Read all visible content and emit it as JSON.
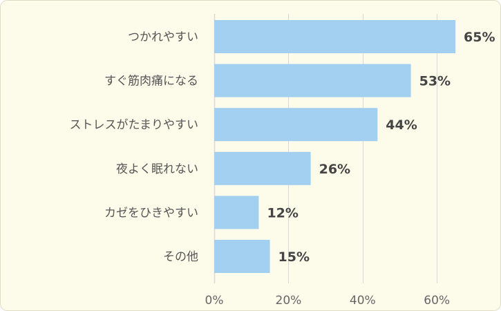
{
  "chart_data": {
    "type": "bar",
    "orientation": "horizontal",
    "categories": [
      "つかれやすい",
      "すぐ筋肉痛になる",
      "ストレスがたまりやすい",
      "夜よく眠れない",
      "カゼをひきやすい",
      "その他"
    ],
    "values": [
      65,
      53,
      44,
      26,
      12,
      15
    ],
    "value_labels": [
      "65%",
      "53%",
      "44%",
      "26%",
      "12%",
      "15%"
    ],
    "x_ticks": [
      0,
      20,
      40,
      60
    ],
    "x_tick_labels": [
      "0%",
      "20%",
      "40%",
      "60%"
    ],
    "xlim": [
      0,
      60
    ],
    "grid": true,
    "colors": {
      "background": "#fdfbea",
      "border": "#dedbc4",
      "bar": "#a3d0f0",
      "grid": "#d9d9d9",
      "category_text": "#555555",
      "value_text": "#444444",
      "tick_text": "#666666"
    }
  }
}
